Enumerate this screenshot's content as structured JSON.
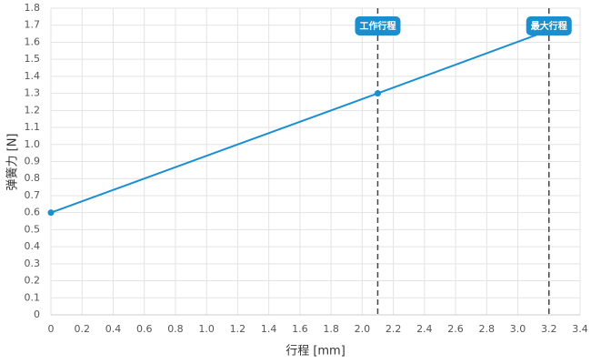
{
  "chart_data": {
    "type": "line",
    "x_label": "行程 [mm]",
    "y_label": "弹簧力 [N]",
    "x": [
      0,
      2.1,
      3.2
    ],
    "series": [
      {
        "name": "弹簧力",
        "color": "#1a8fd0",
        "values": [
          0.6,
          1.3,
          1.67
        ]
      }
    ],
    "xlim": [
      0,
      3.4
    ],
    "xticks": [
      0,
      0.2,
      0.4,
      0.6,
      0.8,
      {
        "value": 1,
        "label": "1.0"
      },
      1.2,
      1.4,
      1.6,
      1.8,
      {
        "value": 2,
        "label": "2.0"
      },
      2.2,
      2.4,
      2.6,
      2.8,
      {
        "value": 3,
        "label": "3.0"
      },
      3.2,
      3.4
    ],
    "ylim": [
      0,
      1.8
    ],
    "yticks": [
      0,
      0.1,
      0.2,
      0.3,
      0.4,
      0.5,
      0.6,
      0.7,
      0.8,
      0.9,
      {
        "value": 1,
        "label": "1.0"
      },
      1.1,
      1.2,
      1.3,
      1.4,
      1.5,
      1.6,
      1.7,
      1.8
    ],
    "grid": true,
    "annotations": [
      {
        "x": 2.1,
        "label": "工作行程"
      },
      {
        "x": 3.2,
        "label": "最大行程"
      }
    ]
  }
}
